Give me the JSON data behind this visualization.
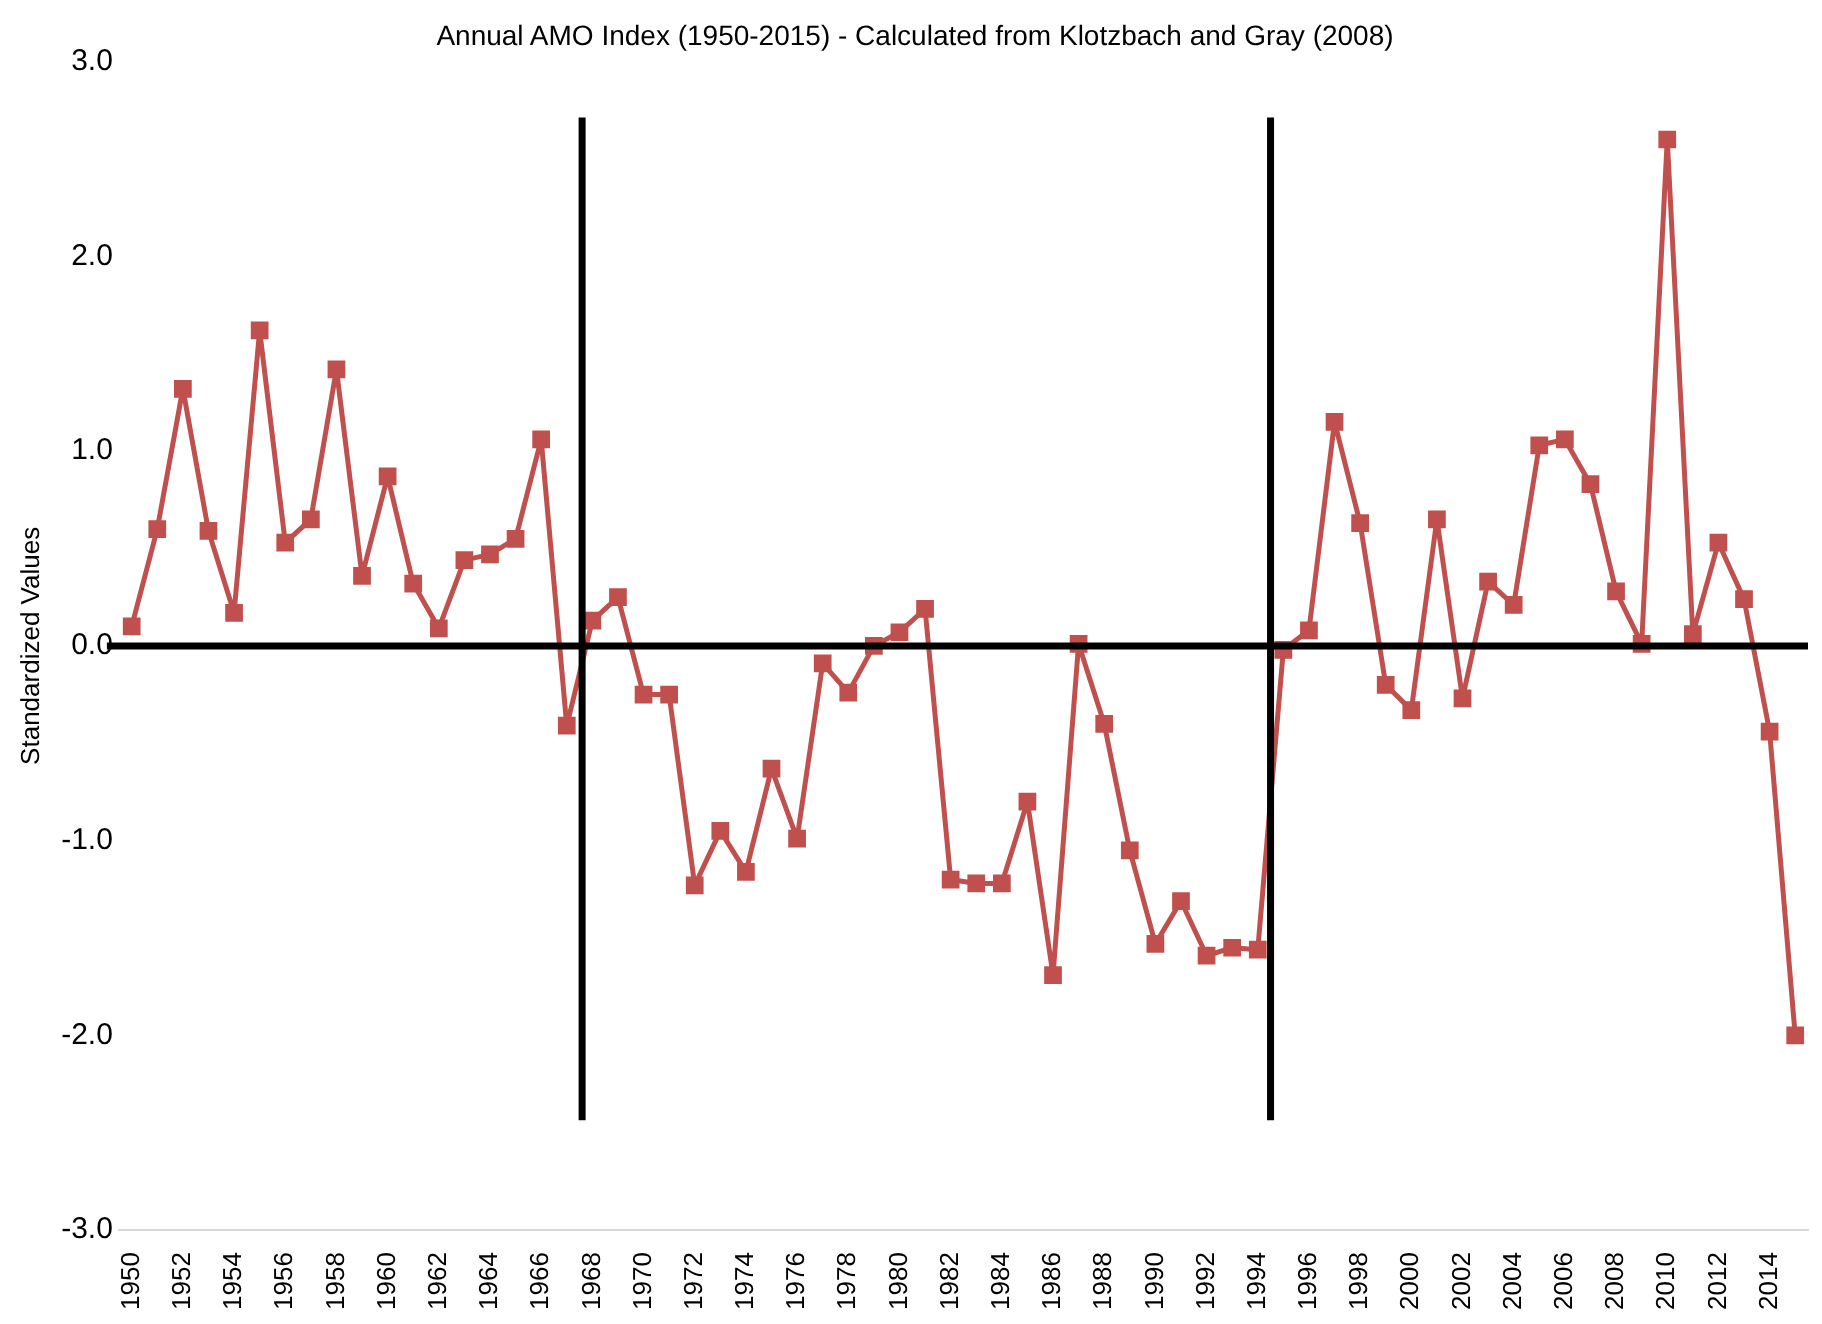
{
  "chart_data": {
    "type": "line",
    "title": "Annual AMO Index (1950-2015) - Calculated from Klotzbach and Gray (2008)",
    "ylabel": "Standardized Values",
    "x": [
      1950,
      1951,
      1952,
      1953,
      1954,
      1955,
      1956,
      1957,
      1958,
      1959,
      1960,
      1961,
      1962,
      1963,
      1964,
      1965,
      1966,
      1967,
      1968,
      1969,
      1970,
      1971,
      1972,
      1973,
      1974,
      1975,
      1976,
      1977,
      1978,
      1979,
      1980,
      1981,
      1982,
      1983,
      1984,
      1985,
      1986,
      1987,
      1988,
      1989,
      1990,
      1991,
      1992,
      1993,
      1994,
      1995,
      1996,
      1997,
      1998,
      1999,
      2000,
      2001,
      2002,
      2003,
      2004,
      2005,
      2006,
      2007,
      2008,
      2009,
      2010,
      2011,
      2012,
      2013,
      2014,
      2015
    ],
    "series": [
      {
        "color": "#c0504d",
        "values": [
          0.1,
          0.6,
          1.32,
          0.59,
          0.17,
          1.62,
          0.53,
          0.65,
          1.42,
          0.36,
          0.87,
          0.32,
          0.09,
          0.44,
          0.47,
          0.55,
          1.06,
          -0.41,
          0.13,
          0.25,
          -0.25,
          -0.25,
          -1.23,
          -0.95,
          -1.16,
          -0.63,
          -0.99,
          -0.09,
          -0.24,
          0.0,
          0.07,
          0.19,
          -1.2,
          -1.22,
          -1.22,
          -0.8,
          -1.69,
          0.01,
          -0.4,
          -1.05,
          -1.53,
          -1.31,
          -1.59,
          -1.55,
          -1.56,
          -0.02,
          0.08,
          1.15,
          0.63,
          -0.2,
          -0.33,
          0.65,
          -0.27,
          0.33,
          0.21,
          1.03,
          1.06,
          0.83,
          0.28,
          0.01,
          2.6,
          0.06,
          0.53,
          0.24,
          -0.44,
          -2.0
        ]
      }
    ],
    "xlim": [
      1949.5,
      2015.5
    ],
    "xticks": [
      1950,
      1952,
      1954,
      1956,
      1958,
      1960,
      1962,
      1964,
      1966,
      1968,
      1970,
      1972,
      1974,
      1976,
      1978,
      1980,
      1982,
      1984,
      1986,
      1988,
      1990,
      1992,
      1994,
      1996,
      1998,
      2000,
      2002,
      2004,
      2006,
      2008,
      2010,
      2012,
      2014
    ],
    "ylim": [
      -3,
      3
    ],
    "yticks": [
      {
        "value": -3,
        "label": "-3.0"
      },
      {
        "value": -2,
        "label": "-2.0"
      },
      {
        "value": -1,
        "label": "-1.0"
      },
      {
        "value": 0,
        "label": "0.0"
      },
      {
        "value": 1,
        "label": "1.0"
      },
      {
        "value": 2,
        "label": "2.0"
      },
      {
        "value": 3,
        "label": "3.0"
      }
    ],
    "ref_lines": [
      {
        "axis": "y",
        "value": 0,
        "color": "#000000"
      },
      {
        "axis": "x",
        "value": 1967.6,
        "color": "#000000"
      },
      {
        "axis": "x",
        "value": 1994.5,
        "color": "#000000"
      }
    ],
    "marker": "square",
    "grid": false,
    "legend": false
  }
}
